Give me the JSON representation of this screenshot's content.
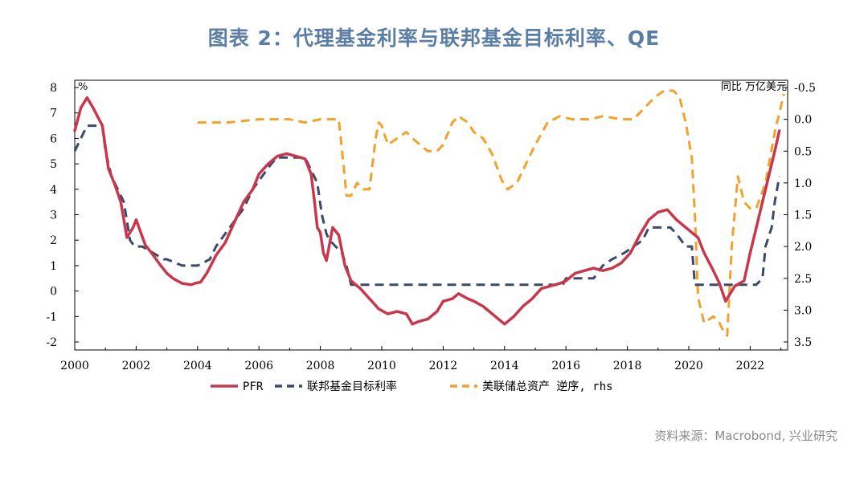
{
  "title": "图表 2：代理基金利率与联邦基金目标利率、QE",
  "source": "资料来源：Macrobond, 兴业研究",
  "chart_data": {
    "type": "line",
    "left_unit": "%",
    "right_unit": "同比 万亿美元",
    "x_ticks": [
      "2000",
      "2002",
      "2004",
      "2006",
      "2008",
      "2010",
      "2012",
      "2014",
      "2016",
      "2018",
      "2020",
      "2022"
    ],
    "left_axis": {
      "ylim": [
        -2,
        8
      ],
      "ticks": [
        "-2",
        "-1",
        "0",
        "1",
        "2",
        "3",
        "4",
        "5",
        "6",
        "7",
        "8"
      ]
    },
    "right_axis": {
      "inverted": true,
      "ylim": [
        -0.5,
        3.5
      ],
      "ticks": [
        "-0.5",
        "0.0",
        "0.5",
        "1.0",
        "1.5",
        "2.0",
        "2.5",
        "3.0",
        "3.5"
      ]
    },
    "grid": false,
    "legend_position": "bottom",
    "series": [
      {
        "name": "PFR",
        "axis": "left",
        "color": "#c8384c",
        "style": "solid",
        "x": [
          2000.0,
          2000.2,
          2000.4,
          2000.6,
          2000.9,
          2001.1,
          2001.3,
          2001.5,
          2001.7,
          2001.9,
          2002.0,
          2002.3,
          2002.5,
          2002.8,
          2003.0,
          2003.2,
          2003.5,
          2003.8,
          2003.9,
          2004.1,
          2004.3,
          2004.6,
          2004.9,
          2005.2,
          2005.5,
          2005.8,
          2006.0,
          2006.3,
          2006.6,
          2006.9,
          2007.2,
          2007.5,
          2007.7,
          2007.8,
          2007.9,
          2008.0,
          2008.1,
          2008.2,
          2008.4,
          2008.6,
          2008.8,
          2009.0,
          2009.3,
          2009.6,
          2009.9,
          2010.2,
          2010.5,
          2010.8,
          2011.0,
          2011.2,
          2011.5,
          2011.8,
          2012.0,
          2012.3,
          2012.5,
          2012.8,
          2013.0,
          2013.3,
          2013.6,
          2013.9,
          2014.0,
          2014.3,
          2014.6,
          2014.9,
          2015.2,
          2015.5,
          2015.8,
          2016.0,
          2016.3,
          2016.6,
          2016.9,
          2017.2,
          2017.5,
          2017.8,
          2018.1,
          2018.4,
          2018.7,
          2019.0,
          2019.3,
          2019.6,
          2019.9,
          2020.1,
          2020.3,
          2020.5,
          2020.8,
          2021.0,
          2021.2,
          2021.5,
          2021.8,
          2022.0,
          2022.3,
          2022.5,
          2022.8,
          2022.95
        ],
        "values": [
          6.3,
          7.2,
          7.6,
          7.2,
          6.5,
          4.8,
          4.2,
          3.5,
          2.1,
          2.5,
          2.8,
          1.8,
          1.5,
          1.0,
          0.7,
          0.5,
          0.3,
          0.25,
          0.3,
          0.35,
          0.7,
          1.4,
          1.9,
          2.7,
          3.5,
          4.0,
          4.6,
          5.0,
          5.3,
          5.4,
          5.3,
          5.2,
          4.6,
          3.6,
          2.5,
          2.3,
          1.5,
          1.2,
          2.5,
          2.2,
          1.0,
          0.4,
          0.1,
          -0.3,
          -0.7,
          -0.9,
          -0.8,
          -0.9,
          -1.3,
          -1.2,
          -1.1,
          -0.8,
          -0.4,
          -0.3,
          -0.1,
          -0.3,
          -0.4,
          -0.6,
          -0.9,
          -1.2,
          -1.3,
          -1.0,
          -0.6,
          -0.3,
          0.1,
          0.2,
          0.3,
          0.4,
          0.7,
          0.8,
          0.9,
          0.8,
          0.9,
          1.1,
          1.5,
          2.2,
          2.8,
          3.1,
          3.2,
          2.8,
          2.5,
          2.3,
          2.1,
          1.5,
          0.8,
          0.3,
          -0.4,
          0.2,
          0.4,
          1.5,
          3.0,
          4.0,
          5.5,
          6.3
        ]
      },
      {
        "name": "联邦基金目标利率",
        "axis": "left",
        "color": "#3b4a6b",
        "style": "dashed",
        "x": [
          2000.0,
          2000.2,
          2000.4,
          2000.9,
          2001.0,
          2001.2,
          2001.4,
          2001.6,
          2001.8,
          2001.95,
          2002.2,
          2002.9,
          2003.0,
          2003.5,
          2004.0,
          2004.4,
          2004.6,
          2004.9,
          2005.2,
          2005.5,
          2005.8,
          2006.1,
          2006.4,
          2006.6,
          2007.5,
          2007.7,
          2007.9,
          2008.05,
          2008.2,
          2008.3,
          2008.7,
          2008.85,
          2008.95,
          2009.0,
          2015.9,
          2016.0,
          2016.9,
          2017.2,
          2017.5,
          2017.9,
          2018.2,
          2018.5,
          2018.7,
          2019.4,
          2019.6,
          2019.9,
          2020.1,
          2020.2,
          2022.2,
          2022.4,
          2022.5,
          2022.7,
          2022.8,
          2022.95
        ],
        "values": [
          5.5,
          6.0,
          6.5,
          6.5,
          5.5,
          4.5,
          4.0,
          3.5,
          2.0,
          1.75,
          1.75,
          1.25,
          1.25,
          1.0,
          1.0,
          1.25,
          1.75,
          2.25,
          2.75,
          3.25,
          4.0,
          4.5,
          5.0,
          5.25,
          5.25,
          4.75,
          4.25,
          3.0,
          2.25,
          2.0,
          1.5,
          1.0,
          0.5,
          0.25,
          0.25,
          0.5,
          0.5,
          1.0,
          1.25,
          1.5,
          1.75,
          2.0,
          2.5,
          2.5,
          2.25,
          1.75,
          1.75,
          0.25,
          0.25,
          0.5,
          1.75,
          2.5,
          3.5,
          4.5
        ]
      },
      {
        "name": "美联储总资产 逆序, rhs",
        "axis": "right",
        "color": "#f1a22c",
        "style": "dashed",
        "x": [
          2004.0,
          2005.0,
          2006.0,
          2007.0,
          2007.5,
          2008.0,
          2008.3,
          2008.6,
          2008.75,
          2008.85,
          2009.0,
          2009.2,
          2009.4,
          2009.6,
          2009.8,
          2009.9,
          2010.0,
          2010.2,
          2010.5,
          2010.8,
          2011.0,
          2011.5,
          2011.8,
          2012.0,
          2012.3,
          2012.5,
          2012.8,
          2013.0,
          2013.3,
          2013.6,
          2013.9,
          2014.1,
          2014.4,
          2014.7,
          2015.0,
          2015.4,
          2015.8,
          2016.2,
          2016.8,
          2017.2,
          2017.8,
          2018.2,
          2018.6,
          2018.9,
          2019.2,
          2019.5,
          2019.7,
          2019.9,
          2020.1,
          2020.2,
          2020.3,
          2020.5,
          2020.8,
          2021.0,
          2021.1,
          2021.25,
          2021.4,
          2021.6,
          2021.8,
          2022.0,
          2022.2,
          2022.5,
          2022.8,
          2023.1
        ],
        "values": [
          0.05,
          0.05,
          0.0,
          0.0,
          0.05,
          0.0,
          0.0,
          0.0,
          0.7,
          1.2,
          1.2,
          1.0,
          1.1,
          1.1,
          0.3,
          0.05,
          0.1,
          0.4,
          0.3,
          0.2,
          0.3,
          0.5,
          0.5,
          0.4,
          0.05,
          -0.05,
          0.05,
          0.2,
          0.3,
          0.55,
          0.95,
          1.1,
          1.0,
          0.7,
          0.4,
          0.05,
          -0.05,
          0.0,
          0.0,
          -0.05,
          0.0,
          0.0,
          -0.2,
          -0.35,
          -0.45,
          -0.45,
          -0.35,
          0.05,
          0.6,
          1.5,
          2.8,
          3.2,
          3.1,
          3.2,
          3.3,
          3.4,
          2.0,
          0.9,
          1.3,
          1.4,
          1.4,
          1.0,
          0.2,
          -0.4
        ]
      }
    ]
  }
}
